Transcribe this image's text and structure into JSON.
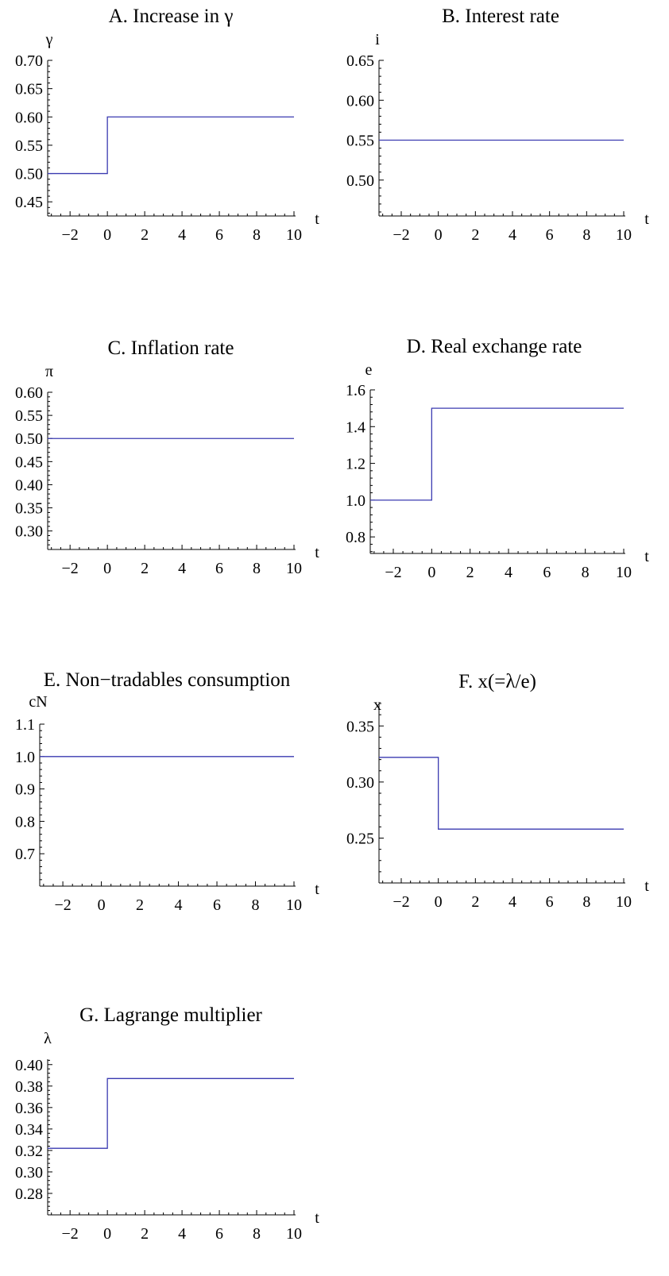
{
  "chart_data": [
    {
      "type": "line",
      "panel": "A",
      "title": "A. Increase in γ",
      "ylabel": "γ",
      "xlabel": "t",
      "xlim": [
        -3.2,
        10
      ],
      "ylim": [
        0.425,
        0.7
      ],
      "xticks": [
        -2,
        0,
        2,
        4,
        6,
        8,
        10
      ],
      "yticks": [
        0.45,
        0.5,
        0.55,
        0.6,
        0.65,
        0.7
      ],
      "ytick_labels": [
        "0.45",
        "0.50",
        "0.55",
        "0.60",
        "0.65",
        "0.70"
      ],
      "x": [
        -3.2,
        0,
        0,
        10
      ],
      "y": [
        0.5,
        0.5,
        0.6,
        0.6
      ]
    },
    {
      "type": "line",
      "panel": "B",
      "title": "B. Interest rate",
      "ylabel": "i",
      "xlabel": "t",
      "xlim": [
        -3.2,
        10
      ],
      "ylim": [
        0.455,
        0.65
      ],
      "xticks": [
        -2,
        0,
        2,
        4,
        6,
        8,
        10
      ],
      "yticks": [
        0.5,
        0.55,
        0.6,
        0.65
      ],
      "ytick_labels": [
        "0.50",
        "0.55",
        "0.60",
        "0.65"
      ],
      "x": [
        -3.2,
        10
      ],
      "y": [
        0.55,
        0.55
      ]
    },
    {
      "type": "line",
      "panel": "C",
      "title": "C. Inflation rate",
      "ylabel": "π",
      "xlabel": "t",
      "xlim": [
        -3.2,
        10
      ],
      "ylim": [
        0.26,
        0.6
      ],
      "xticks": [
        -2,
        0,
        2,
        4,
        6,
        8,
        10
      ],
      "yticks": [
        0.3,
        0.35,
        0.4,
        0.45,
        0.5,
        0.55,
        0.6
      ],
      "ytick_labels": [
        "0.30",
        "0.35",
        "0.40",
        "0.45",
        "0.50",
        "0.55",
        "0.60"
      ],
      "x": [
        -3.2,
        10
      ],
      "y": [
        0.5,
        0.5
      ]
    },
    {
      "type": "line",
      "panel": "D",
      "title": "D. Real exchange rate",
      "ylabel": "e",
      "xlabel": "t",
      "xlim": [
        -3.2,
        10
      ],
      "ylim": [
        0.71,
        1.6
      ],
      "xticks": [
        -2,
        0,
        2,
        4,
        6,
        8,
        10
      ],
      "yticks": [
        0.8,
        1.0,
        1.2,
        1.4,
        1.6
      ],
      "ytick_labels": [
        "0.8",
        "1.0",
        "1.2",
        "1.4",
        "1.6"
      ],
      "x": [
        -3.2,
        0,
        0,
        10
      ],
      "y": [
        1.0,
        1.0,
        1.5,
        1.5
      ]
    },
    {
      "type": "line",
      "panel": "E",
      "title": "E. Non−tradables consumption",
      "ylabel": "cN",
      "xlabel": "t",
      "xlim": [
        -3.2,
        10
      ],
      "ylim": [
        0.6,
        1.1
      ],
      "xticks": [
        -2,
        0,
        2,
        4,
        6,
        8,
        10
      ],
      "yticks": [
        0.7,
        0.8,
        0.9,
        1.0,
        1.1
      ],
      "ytick_labels": [
        "0.7",
        "0.8",
        "0.9",
        "1.0",
        "1.1"
      ],
      "x": [
        -3.2,
        10
      ],
      "y": [
        1.0,
        1.0
      ]
    },
    {
      "type": "line",
      "panel": "F",
      "title": "F. x(=λ/e)",
      "ylabel": "x",
      "xlabel": "t",
      "xlim": [
        -3.2,
        10
      ],
      "ylim": [
        0.21,
        0.37
      ],
      "xticks": [
        -2,
        0,
        2,
        4,
        6,
        8,
        10
      ],
      "yticks": [
        0.25,
        0.3,
        0.35
      ],
      "ytick_labels": [
        "0.25",
        "0.30",
        "0.35"
      ],
      "x": [
        -3.2,
        0,
        0,
        10
      ],
      "y": [
        0.322,
        0.322,
        0.258,
        0.258
      ]
    },
    {
      "type": "line",
      "panel": "G",
      "title": "G. Lagrange multiplier",
      "ylabel": "λ",
      "xlabel": "t",
      "xlim": [
        -3.2,
        10
      ],
      "ylim": [
        0.26,
        0.405
      ],
      "xticks": [
        -2,
        0,
        2,
        4,
        6,
        8,
        10
      ],
      "yticks": [
        0.28,
        0.3,
        0.32,
        0.34,
        0.36,
        0.38,
        0.4
      ],
      "ytick_labels": [
        "0.28",
        "0.30",
        "0.32",
        "0.34",
        "0.36",
        "0.38",
        "0.40"
      ],
      "x": [
        -3.2,
        0,
        0,
        10
      ],
      "y": [
        0.322,
        0.322,
        0.387,
        0.387
      ]
    }
  ],
  "colors": {
    "series": "#3a3ab0",
    "axis": "#000000"
  }
}
